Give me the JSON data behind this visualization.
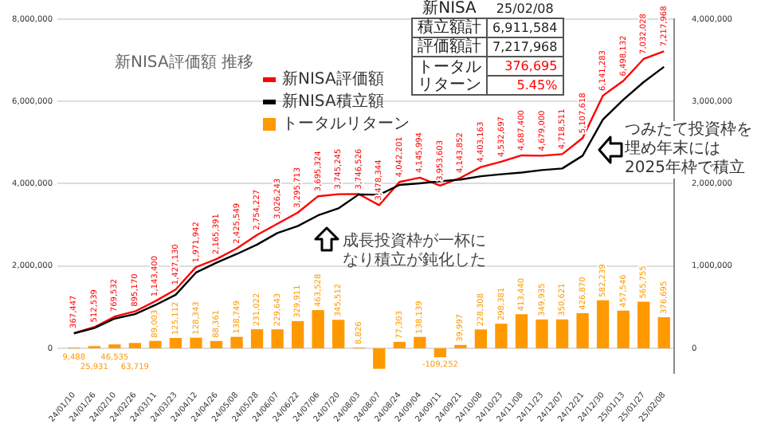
{
  "chart_data": {
    "type": "line",
    "title": "新NISA評価額 推移",
    "categories": [
      "24/01/10",
      "24/01/26",
      "24/02/10",
      "24/02/26",
      "24/03/11",
      "24/03/23",
      "24/04/12",
      "24/04/26",
      "24/05/08",
      "24/05/28",
      "24/06/07",
      "24/06/22",
      "24/07/06",
      "24/07/20",
      "24/08/03",
      "24/08/07",
      "24/08/24",
      "24/09/04",
      "24/09/11",
      "24/09/21",
      "24/10/08",
      "24/10/23",
      "24/11/08",
      "24/11/23",
      "24/12/07",
      "24/12/21",
      "24/12/30",
      "25/01/13",
      "25/01/27",
      "25/02/08"
    ],
    "series": [
      {
        "name": "トータルリターン",
        "type": "bar",
        "axis": "y2",
        "color": "#ff9900",
        "values": [
          9488,
          25931,
          46535,
          63719,
          89003,
          125112,
          128343,
          88361,
          138749,
          231022,
          229643,
          329911,
          463528,
          345512,
          8826,
          -250000,
          77303,
          138139,
          -109252,
          39997,
          228308,
          298381,
          413440,
          349935,
          350621,
          426870,
          582239,
          457546,
          565755,
          376695
        ],
        "value_labels": [
          "9,488",
          "25,931",
          "46,535",
          "63,719",
          "89,003",
          "125,112",
          "128,343",
          "88,361",
          "138,749",
          "231,022",
          "229,643",
          "329,911",
          "463,528",
          "345,512",
          "8,826",
          null,
          "77,303",
          "138,139",
          "-109,252",
          "39,997",
          "228,308",
          "298,381",
          "413,440",
          "349,935",
          "350,621",
          "426,870",
          "582,239",
          "457,546",
          "565,755",
          "376,695"
        ]
      },
      {
        "name": "新NISA積立額",
        "color": "#000000",
        "values": [
          360000,
          490000,
          720000,
          830000,
          1050000,
          1300000,
          1840000,
          2080000,
          2290000,
          2520000,
          2800000,
          2970000,
          3230000,
          3400000,
          3740000,
          3730000,
          3970000,
          4010000,
          4060000,
          4100000,
          4180000,
          4230000,
          4270000,
          4330000,
          4370000,
          4680000,
          5560000,
          6040000,
          6470000,
          6840000
        ]
      },
      {
        "name": "新NISA評価額",
        "color": "#ff0000",
        "values": [
          367447,
          512539,
          769532,
          895170,
          1143400,
          1427130,
          1971942,
          2165391,
          2425549,
          2754227,
          3026243,
          3295713,
          3695324,
          3745245,
          3746526,
          3478344,
          4042201,
          4145994,
          3953603,
          4143852,
          4403163,
          4532697,
          4687400,
          4679000,
          4718511,
          5107618,
          6141283,
          6498132,
          7032028,
          7217968
        ],
        "value_labels": [
          "367,447",
          "512,539",
          "769,532",
          "895,170",
          "1,143,400",
          "1,427,130",
          "1,971,942",
          "2,165,391",
          "2,425,549",
          "2,754,227",
          "3,026,243",
          "3,295,713",
          "3,695,324",
          "3,745,245",
          "3,746,526",
          "3,478,344",
          "4,042,201",
          "4,145,994",
          "3,953,603",
          "4,143,852",
          "4,403,163",
          "4,532,697",
          "4,687,400",
          "4,679,000",
          "4,718,511",
          "5,107,618",
          "6,141,283",
          "6,498,132",
          "7,032,028",
          "7,217,968"
        ]
      }
    ],
    "ylim": [
      -600000,
      8000000
    ],
    "yticks": [
      {
        "value": 0,
        "label": "0"
      },
      {
        "value": 2000000,
        "label": "2,000,000"
      },
      {
        "value": 4000000,
        "label": "4,000,000"
      },
      {
        "value": 6000000,
        "label": "6,000,000"
      },
      {
        "value": 8000000,
        "label": "8,000,000"
      }
    ],
    "y2lim": [
      -300000,
      4000000
    ],
    "y2ticks": [
      {
        "value": 0,
        "label": "0"
      },
      {
        "value": 1000000,
        "label": "1,000,000"
      },
      {
        "value": 2000000,
        "label": "2,000,000"
      },
      {
        "value": 3000000,
        "label": "3,000,000"
      },
      {
        "value": 4000000,
        "label": "4,000,000"
      }
    ],
    "grid": "y",
    "legend": "top",
    "marker": "none",
    "line_style": "solid",
    "annotations": [
      "成長投資枠が一杯になり積立が鈍化した",
      "つみたて投資枠を埋め年末には2025年枠で積立",
      "新NISA",
      "25/02/08",
      "積立額計",
      "6,911,584",
      "評価額計",
      "7,217,968",
      "トータルリターン",
      "376,695",
      "5.45%"
    ]
  }
}
